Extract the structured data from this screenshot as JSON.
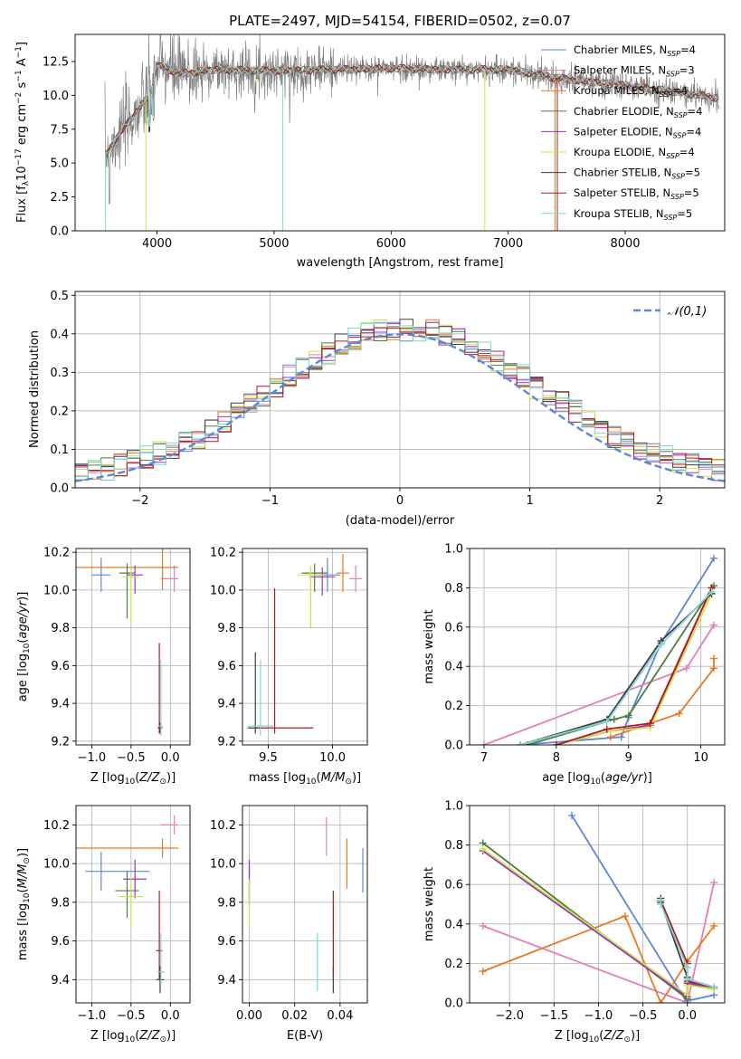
{
  "title": "PLATE=2497, MJD=54154, FIBERID=0502, z=0.07",
  "colors": {
    "chabrier_miles": "#5b87d9",
    "salpeter_miles": "#e37fb8",
    "kroupa_miles": "#e67a24",
    "chabrier_elodie": "#4f7c3e",
    "salpeter_elodie": "#9a34c0",
    "kroupa_elodie": "#cde14a",
    "chabrier_stelib": "#3d3d3d",
    "salpeter_stelib": "#b01a1a",
    "kroupa_stelib": "#7fd6d6",
    "data": "#808080",
    "gaussian": "#5b87d9"
  },
  "chart_data": [
    {
      "id": "spectrum",
      "type": "line",
      "xlabel": "wavelength [Angstrom, rest frame]",
      "ylabel": "Flux [f_λ 10^-17 erg cm^-2 s^-1 A^-1]",
      "xlim": [
        3300,
        8850
      ],
      "ylim": [
        0,
        14.5
      ],
      "xticks": [
        4000,
        5000,
        6000,
        7000,
        8000
      ],
      "yticks": [
        "0.0",
        "2.5",
        "5.0",
        "7.5",
        "10.0",
        "12.5"
      ],
      "legend": "top-right",
      "series": [
        {
          "key": "chabrier_miles",
          "name": "Chabrier MILES, N_SSP=4"
        },
        {
          "key": "salpeter_miles",
          "name": "Salpeter MILES, N_SSP=3"
        },
        {
          "key": "kroupa_miles",
          "name": "Kroupa MILES, N_SSP=4"
        },
        {
          "key": "chabrier_elodie",
          "name": "Chabrier ELODIE, N_SSP=4"
        },
        {
          "key": "salpeter_elodie",
          "name": "Salpeter ELODIE, N_SSP=4"
        },
        {
          "key": "kroupa_elodie",
          "name": "Kroupa ELODIE, N_SSP=4"
        },
        {
          "key": "chabrier_stelib",
          "name": "Chabrier STELIB, N_SSP=5"
        },
        {
          "key": "salpeter_stelib",
          "name": "Salpeter STELIB, N_SSP=5"
        },
        {
          "key": "kroupa_stelib",
          "name": "Kroupa STELIB, N_SSP=5"
        }
      ],
      "continuum": {
        "x": [
          3550,
          3650,
          3800,
          3950,
          4000,
          4200,
          4500,
          5000,
          5500,
          6000,
          6500,
          7000,
          7400,
          7800,
          8300,
          8800
        ],
        "y": [
          5.5,
          6.8,
          8.5,
          10.2,
          12.2,
          11.6,
          11.9,
          11.8,
          11.9,
          12.0,
          11.9,
          11.9,
          11.3,
          10.9,
          10.4,
          9.8
        ]
      }
    },
    {
      "id": "residuals",
      "type": "line",
      "xlabel": "(data-model)/error",
      "ylabel": "Normed distribution",
      "xlim": [
        -2.5,
        2.5
      ],
      "ylim": [
        0,
        0.51
      ],
      "xticks": [
        "−2",
        "−1",
        "0",
        "1",
        "2"
      ],
      "yticks": [
        "0.0",
        "0.1",
        "0.2",
        "0.3",
        "0.4",
        "0.5"
      ],
      "gaussian_label": "𝒩(0,1)",
      "bin_width": 0.1,
      "base_hist": [
        0.045,
        0.045,
        0.05,
        0.06,
        0.07,
        0.08,
        0.09,
        0.1,
        0.115,
        0.13,
        0.15,
        0.175,
        0.2,
        0.22,
        0.24,
        0.26,
        0.29,
        0.31,
        0.33,
        0.35,
        0.37,
        0.385,
        0.4,
        0.41,
        0.41,
        0.41,
        0.41,
        0.41,
        0.4,
        0.385,
        0.37,
        0.35,
        0.33,
        0.31,
        0.29,
        0.26,
        0.24,
        0.22,
        0.2,
        0.175,
        0.15,
        0.13,
        0.115,
        0.1,
        0.09,
        0.08,
        0.07,
        0.06,
        0.05,
        0.045
      ]
    },
    {
      "id": "age-vs-metallicity",
      "type": "scatter",
      "xlabel": "Z [log10(Z/Z☉)]",
      "ylabel": "age [log10(age/yr)]",
      "xlim": [
        -1.2,
        0.25
      ],
      "ylim": [
        9.18,
        10.22
      ],
      "xticks": [
        "−1.0",
        "−0.5",
        "0.0"
      ],
      "yticks": [
        "9.2",
        "9.4",
        "9.6",
        "9.8",
        "10.0",
        "10.2"
      ],
      "points": [
        {
          "key": "chabrier_miles",
          "x": -0.88,
          "y": 10.08,
          "xerr": [
            0.12,
            0.12
          ],
          "yerr": [
            0.09,
            0.09
          ]
        },
        {
          "key": "salpeter_miles",
          "x": 0.05,
          "y": 10.06,
          "xerr": [
            0.17,
            0.05
          ],
          "yerr": [
            0.07,
            0.07
          ]
        },
        {
          "key": "kroupa_miles",
          "x": -0.1,
          "y": 10.12,
          "xerr": [
            1.1,
            0.2
          ],
          "yerr": [
            0.12,
            0.1
          ]
        },
        {
          "key": "chabrier_elodie",
          "x": -0.55,
          "y": 10.09,
          "xerr": [
            0.1,
            0.1
          ],
          "yerr": [
            0.24,
            0.05
          ]
        },
        {
          "key": "salpeter_elodie",
          "x": -0.45,
          "y": 10.08,
          "xerr": [
            0.1,
            0.1
          ],
          "yerr": [
            0.1,
            0.05
          ]
        },
        {
          "key": "kroupa_elodie",
          "x": -0.5,
          "y": 10.07,
          "xerr": [
            0.1,
            0.1
          ],
          "yerr": [
            0.25,
            0.05
          ]
        },
        {
          "key": "chabrier_stelib",
          "x": -0.13,
          "y": 9.27,
          "xerr": [
            0.03,
            0.03
          ],
          "yerr": [
            0.03,
            0.03
          ]
        },
        {
          "key": "salpeter_stelib",
          "x": -0.14,
          "y": 9.27,
          "xerr": [
            0.02,
            0.02
          ],
          "yerr": [
            0.03,
            0.45
          ]
        },
        {
          "key": "kroupa_stelib",
          "x": -0.12,
          "y": 9.28,
          "xerr": [
            0.02,
            0.02
          ],
          "yerr": [
            0.05,
            0.35
          ]
        }
      ]
    },
    {
      "id": "age-vs-mass",
      "type": "scatter",
      "xlabel": "mass [log10(M/M☉)]",
      "ylabel": "",
      "xlim": [
        9.3,
        10.27
      ],
      "ylim": [
        9.18,
        10.22
      ],
      "xticks": [
        "9.5",
        "10.0"
      ],
      "yticks": [
        "9.2",
        "9.4",
        "9.6",
        "9.8",
        "10.0",
        "10.2"
      ],
      "points": [
        {
          "key": "chabrier_miles",
          "x": 9.96,
          "y": 10.08,
          "xerr": [
            0.1,
            0.1
          ],
          "yerr": [
            0.09,
            0.09
          ]
        },
        {
          "key": "salpeter_miles",
          "x": 10.18,
          "y": 10.06,
          "xerr": [
            0.05,
            0.05
          ],
          "yerr": [
            0.07,
            0.07
          ]
        },
        {
          "key": "kroupa_miles",
          "x": 10.08,
          "y": 10.09,
          "xerr": [
            0.05,
            0.05
          ],
          "yerr": [
            0.1,
            0.1
          ]
        },
        {
          "key": "chabrier_elodie",
          "x": 9.86,
          "y": 10.09,
          "xerr": [
            0.1,
            0.1
          ],
          "yerr": [
            0.1,
            0.05
          ]
        },
        {
          "key": "salpeter_elodie",
          "x": 9.92,
          "y": 10.07,
          "xerr": [
            0.1,
            0.1
          ],
          "yerr": [
            0.1,
            0.05
          ]
        },
        {
          "key": "kroupa_elodie",
          "x": 9.83,
          "y": 10.08,
          "xerr": [
            0.1,
            0.1
          ],
          "yerr": [
            0.28,
            0.05
          ]
        },
        {
          "key": "chabrier_stelib",
          "x": 9.4,
          "y": 9.27,
          "xerr": [
            0.06,
            0.06
          ],
          "yerr": [
            0.03,
            0.4
          ]
        },
        {
          "key": "salpeter_stelib",
          "x": 9.55,
          "y": 9.27,
          "xerr": [
            0.15,
            0.3
          ],
          "yerr": [
            0.03,
            0.74
          ]
        },
        {
          "key": "kroupa_stelib",
          "x": 9.44,
          "y": 9.28,
          "xerr": [
            0.1,
            0.1
          ],
          "yerr": [
            0.05,
            0.35
          ]
        }
      ]
    },
    {
      "id": "mass-weight-vs-age",
      "type": "line",
      "xlabel": "age [log10(age/yr)]",
      "ylabel": "mass weight",
      "xlim": [
        6.8,
        10.33
      ],
      "ylim": [
        0,
        1.0
      ],
      "xticks": [
        "7",
        "8",
        "9",
        "10"
      ],
      "yticks": [
        "0.0",
        "0.2",
        "0.4",
        "0.6",
        "0.8",
        "1.0"
      ],
      "series": [
        {
          "key": "chabrier_miles",
          "x": [
            7.5,
            8.9,
            9.0,
            9.45,
            10.18
          ],
          "y": [
            0.0,
            0.04,
            0.14,
            0.52,
            0.95
          ]
        },
        {
          "key": "salpeter_miles",
          "x": [
            7.0,
            9.8,
            10.18
          ],
          "y": [
            0.0,
            0.39,
            0.61
          ]
        },
        {
          "key": "kroupa_miles",
          "x": [
            8.75,
            9.7,
            10.18,
            10.18
          ],
          "y": [
            0.04,
            0.16,
            0.39,
            0.44
          ]
        },
        {
          "key": "chabrier_elodie",
          "x": [
            7.6,
            8.8,
            9.0,
            10.18
          ],
          "y": [
            0.0,
            0.13,
            0.15,
            0.81
          ]
        },
        {
          "key": "salpeter_elodie",
          "x": [
            8.0,
            8.75,
            9.3,
            10.15
          ],
          "y": [
            0.0,
            0.07,
            0.1,
            0.8
          ]
        },
        {
          "key": "kroupa_elodie",
          "x": [
            8.0,
            8.75,
            9.3,
            10.15
          ],
          "y": [
            0.0,
            0.07,
            0.09,
            0.77
          ]
        },
        {
          "key": "chabrier_stelib",
          "x": [
            7.5,
            8.7,
            9.45,
            10.15
          ],
          "y": [
            0.0,
            0.13,
            0.53,
            0.77
          ]
        },
        {
          "key": "salpeter_stelib",
          "x": [
            8.0,
            8.7,
            9.3,
            10.15
          ],
          "y": [
            0.0,
            0.08,
            0.11,
            0.8
          ]
        },
        {
          "key": "kroupa_stelib",
          "x": [
            7.5,
            8.7,
            9.45,
            10.15
          ],
          "y": [
            0.0,
            0.12,
            0.51,
            0.78
          ]
        }
      ]
    },
    {
      "id": "mass-vs-metallicity",
      "type": "scatter",
      "xlabel": "Z [log10(Z/Z☉)]",
      "ylabel": "mass [log10(M/M☉)]",
      "xlim": [
        -1.2,
        0.25
      ],
      "ylim": [
        9.28,
        10.3
      ],
      "xticks": [
        "−1.0",
        "−0.5",
        "0.0"
      ],
      "yticks": [
        "9.4",
        "9.6",
        "9.8",
        "10.0",
        "10.2"
      ],
      "points": [
        {
          "key": "chabrier_miles",
          "x": -0.88,
          "y": 9.96,
          "xerr": [
            0.2,
            0.62
          ],
          "yerr": [
            0.1,
            0.1
          ]
        },
        {
          "key": "salpeter_miles",
          "x": 0.05,
          "y": 10.2,
          "xerr": [
            0.17,
            0.05
          ],
          "yerr": [
            0.05,
            0.05
          ]
        },
        {
          "key": "kroupa_miles",
          "x": -0.1,
          "y": 10.08,
          "xerr": [
            1.1,
            0.2
          ],
          "yerr": [
            0.05,
            0.05
          ]
        },
        {
          "key": "chabrier_elodie",
          "x": -0.55,
          "y": 9.86,
          "xerr": [
            0.15,
            0.15
          ],
          "yerr": [
            0.14,
            0.1
          ]
        },
        {
          "key": "salpeter_elodie",
          "x": -0.45,
          "y": 9.92,
          "xerr": [
            0.15,
            0.15
          ],
          "yerr": [
            0.1,
            0.1
          ]
        },
        {
          "key": "kroupa_elodie",
          "x": -0.5,
          "y": 9.83,
          "xerr": [
            0.15,
            0.15
          ],
          "yerr": [
            0.15,
            0.1
          ]
        },
        {
          "key": "chabrier_stelib",
          "x": -0.13,
          "y": 9.4,
          "xerr": [
            0.05,
            0.05
          ],
          "yerr": [
            0.07,
            0.07
          ]
        },
        {
          "key": "salpeter_stelib",
          "x": -0.14,
          "y": 9.55,
          "xerr": [
            0.04,
            0.04
          ],
          "yerr": [
            0.15,
            0.31
          ]
        },
        {
          "key": "kroupa_stelib",
          "x": -0.12,
          "y": 9.44,
          "xerr": [
            0.05,
            0.05
          ],
          "yerr": [
            0.06,
            0.2
          ]
        }
      ]
    },
    {
      "id": "mass-vs-extinction",
      "type": "scatter",
      "xlabel": "E(B-V)",
      "ylabel": "",
      "xlim": [
        -0.003,
        0.052
      ],
      "ylim": [
        9.28,
        10.3
      ],
      "xticks": [
        "0.00",
        "0.02",
        "0.04"
      ],
      "yticks": [
        "9.4",
        "9.6",
        "9.8",
        "10.0",
        "10.2"
      ],
      "points": [
        {
          "key": "chabrier_miles",
          "x": 0.05,
          "y": 9.96,
          "xerr": [
            0,
            0
          ],
          "yerr": [
            0.11,
            0.12
          ]
        },
        {
          "key": "salpeter_miles",
          "x": 0.034,
          "y": 10.14,
          "xerr": [
            0,
            0
          ],
          "yerr": [
            0.1,
            0.1
          ]
        },
        {
          "key": "kroupa_miles",
          "x": 0.043,
          "y": 10.0,
          "xerr": [
            0,
            0
          ],
          "yerr": [
            0.13,
            0.13
          ]
        },
        {
          "key": "chabrier_elodie",
          "x": 0.0,
          "y": 9.89,
          "xerr": [
            0,
            0
          ],
          "yerr": [
            0.1,
            0.1
          ]
        },
        {
          "key": "salpeter_elodie",
          "x": 0.0,
          "y": 9.92,
          "xerr": [
            0,
            0
          ],
          "yerr": [
            0.1,
            0.1
          ]
        },
        {
          "key": "kroupa_elodie",
          "x": 0.0,
          "y": 9.82,
          "xerr": [
            0,
            0
          ],
          "yerr": [
            0.15,
            0.1
          ]
        },
        {
          "key": "chabrier_stelib",
          "x": 0.037,
          "y": 9.4,
          "xerr": [
            0,
            0
          ],
          "yerr": [
            0.07,
            0.07
          ]
        },
        {
          "key": "salpeter_stelib",
          "x": 0.037,
          "y": 9.55,
          "xerr": [
            0,
            0
          ],
          "yerr": [
            0.15,
            0.31
          ]
        },
        {
          "key": "kroupa_stelib",
          "x": 0.03,
          "y": 9.48,
          "xerr": [
            0,
            0
          ],
          "yerr": [
            0.14,
            0.16
          ]
        }
      ]
    },
    {
      "id": "mass-weight-vs-metallicity",
      "type": "line",
      "xlabel": "Z [log10(Z/Z☉)]",
      "ylabel": "mass weight",
      "xlim": [
        -2.45,
        0.42
      ],
      "ylim": [
        0,
        1.0
      ],
      "xticks": [
        "−2.0",
        "−1.5",
        "−1.0",
        "−0.5",
        "0.0"
      ],
      "yticks": [
        "0.0",
        "0.2",
        "0.4",
        "0.6",
        "0.8",
        "1.0"
      ],
      "series": [
        {
          "key": "chabrier_miles",
          "x": [
            -1.3,
            0.0,
            0.0,
            0.3
          ],
          "y": [
            0.95,
            0.0,
            0.01,
            0.04
          ]
        },
        {
          "key": "salpeter_miles",
          "x": [
            -2.3,
            0.0,
            0.0,
            0.3
          ],
          "y": [
            0.39,
            0.0,
            0.0,
            0.61
          ]
        },
        {
          "key": "kroupa_miles",
          "x": [
            -2.3,
            -0.7,
            -0.3,
            0.0,
            0.3
          ],
          "y": [
            0.16,
            0.44,
            0.0,
            0.21,
            0.39
          ]
        },
        {
          "key": "chabrier_elodie",
          "x": [
            -2.3,
            0.0,
            0.0,
            0.3
          ],
          "y": [
            0.81,
            0.02,
            0.1,
            0.07
          ]
        },
        {
          "key": "salpeter_elodie",
          "x": [
            -2.3,
            0.0,
            0.0,
            0.3
          ],
          "y": [
            0.77,
            0.03,
            0.1,
            0.08
          ]
        },
        {
          "key": "kroupa_elodie",
          "x": [
            -2.3,
            0.0,
            0.0,
            0.3
          ],
          "y": [
            0.78,
            0.04,
            0.09,
            0.07
          ]
        },
        {
          "key": "chabrier_stelib",
          "x": [
            -0.3,
            -0.3,
            0.0,
            0.0,
            0.3
          ],
          "y": [
            0.53,
            0.51,
            0.13,
            0.12,
            0.08
          ]
        },
        {
          "key": "salpeter_stelib",
          "x": [
            -0.3,
            0.0,
            0.0,
            0.3
          ],
          "y": [
            0.52,
            0.2,
            0.11,
            0.08
          ]
        },
        {
          "key": "kroupa_stelib",
          "x": [
            -0.3,
            -0.3,
            0.0,
            0.0,
            0.3
          ],
          "y": [
            0.52,
            0.5,
            0.18,
            0.12,
            0.08
          ]
        }
      ]
    }
  ]
}
